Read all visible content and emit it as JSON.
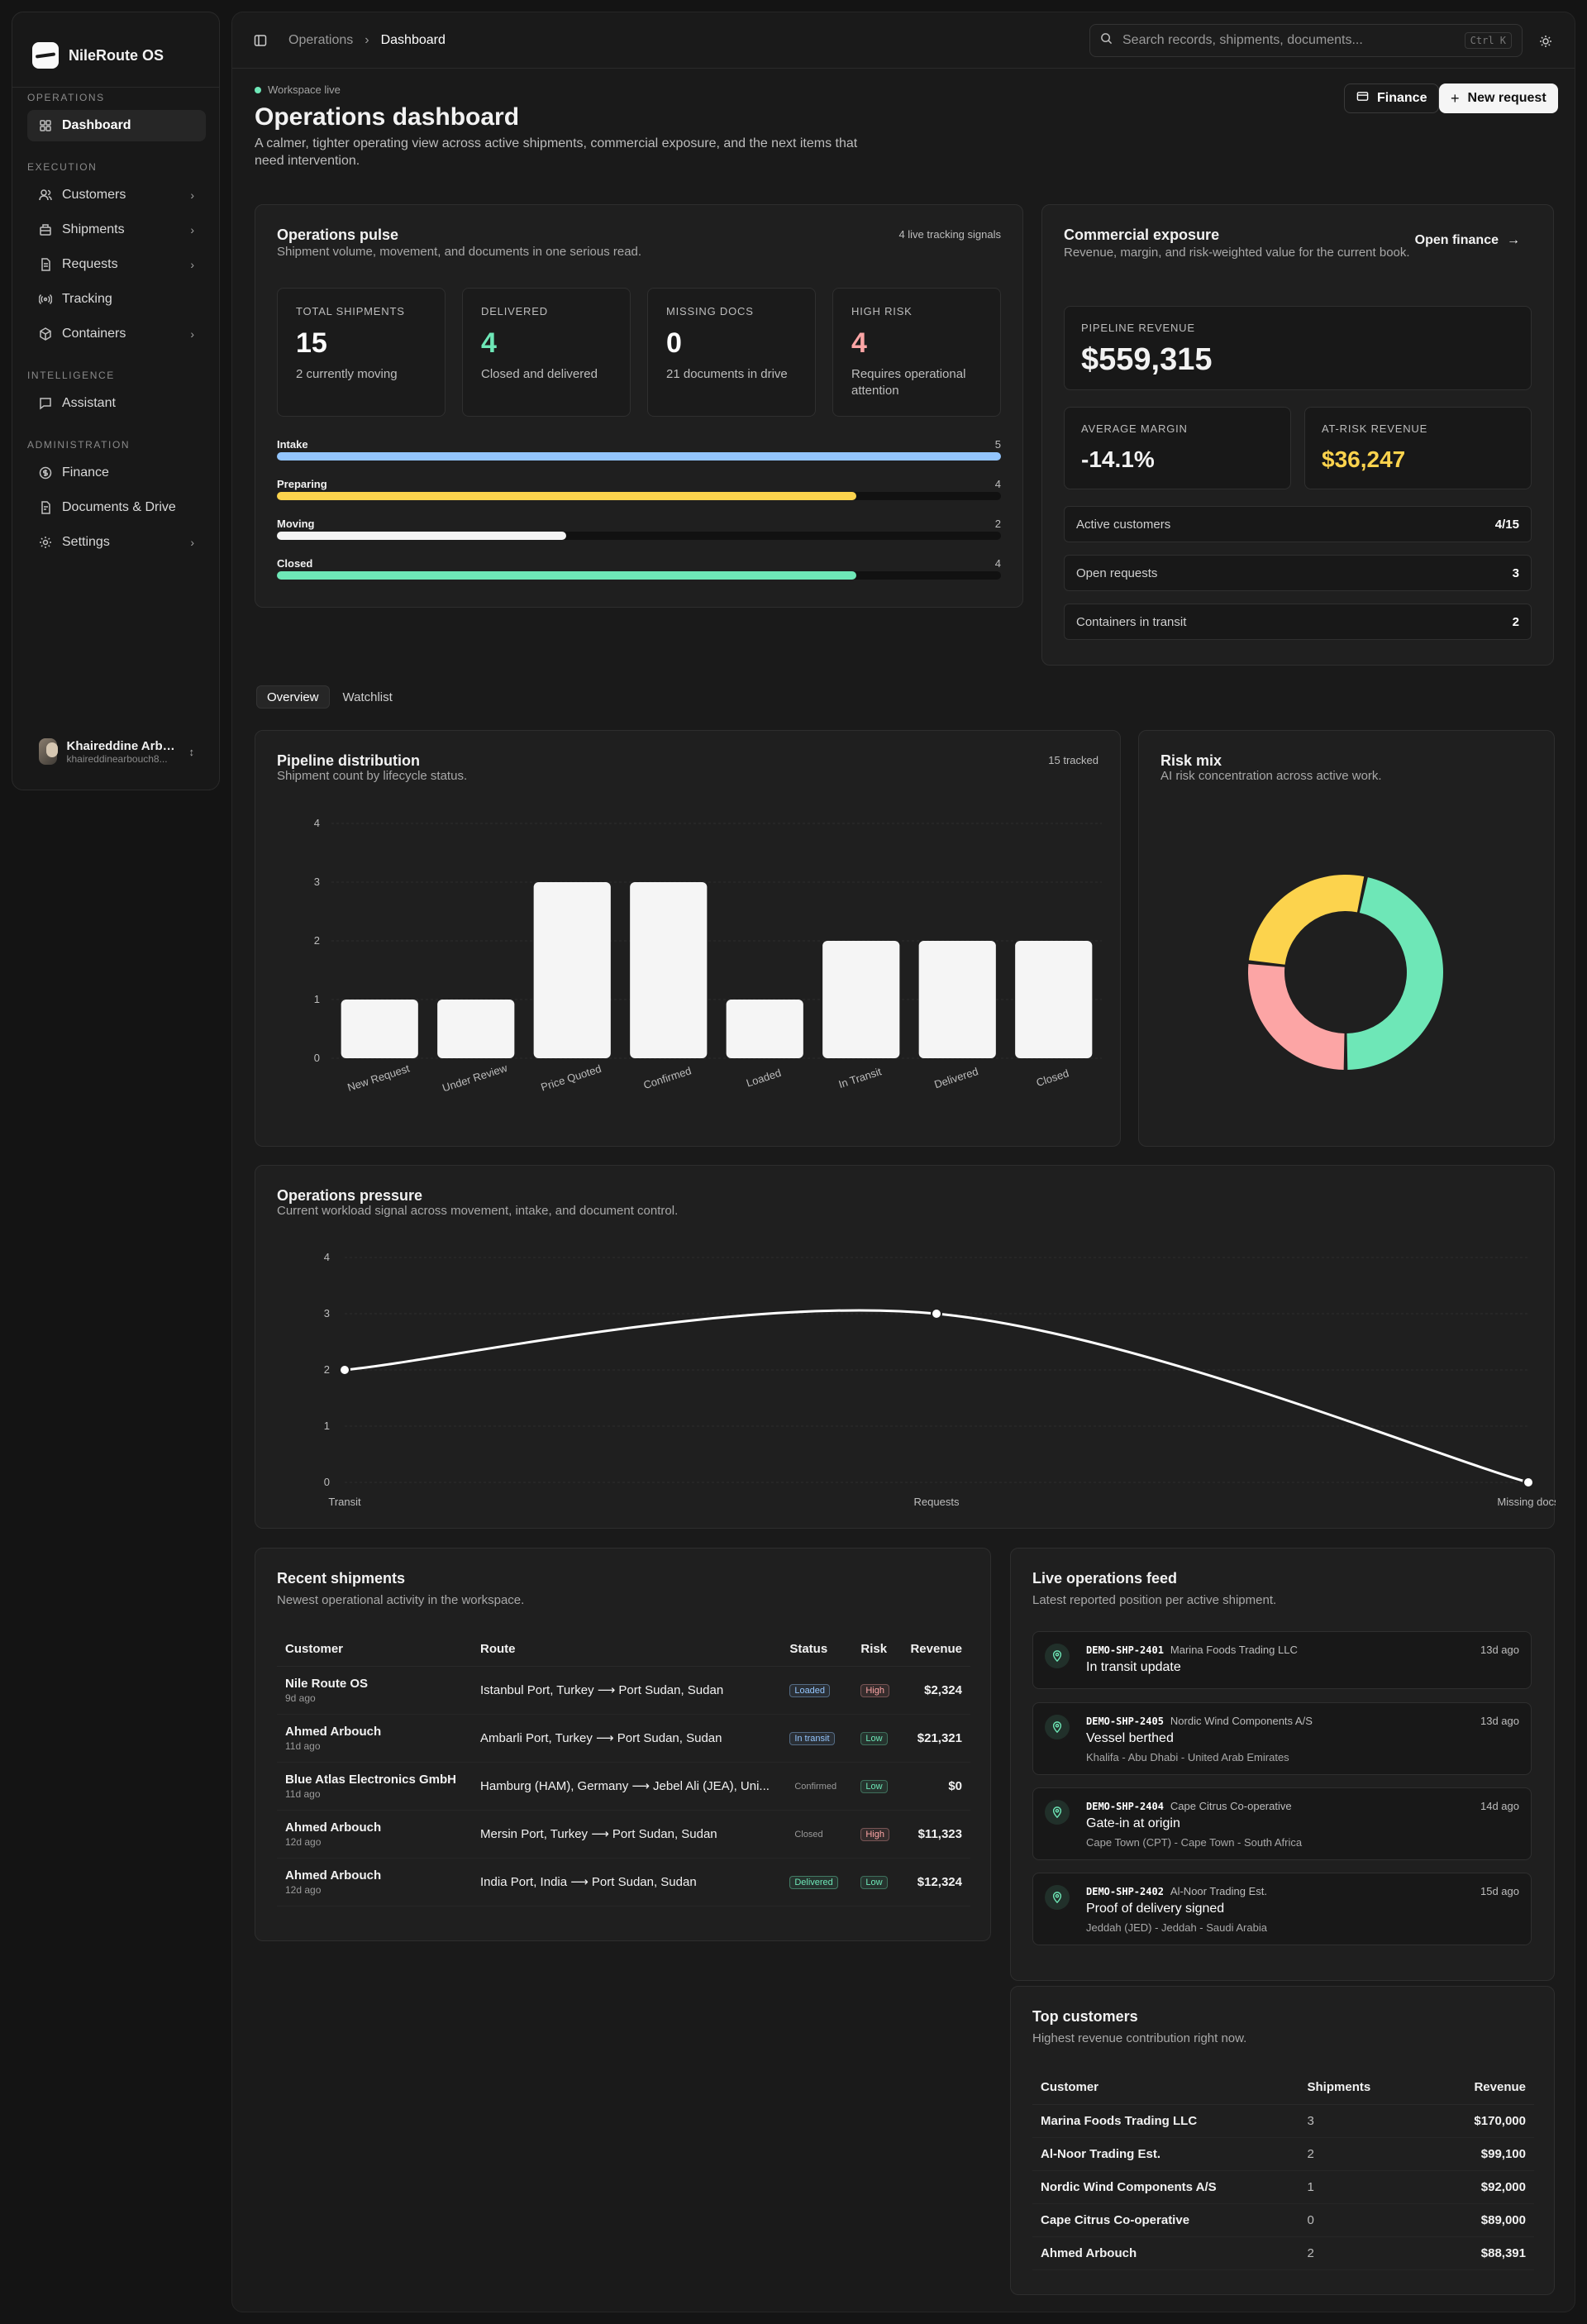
{
  "app": {
    "name": "NileRoute OS"
  },
  "sidebar": {
    "groups": [
      {
        "label": "Operations"
      },
      {
        "label": "Execution"
      },
      {
        "label": "Intelligence"
      },
      {
        "label": "Administration"
      }
    ],
    "items": [
      {
        "label": "Dashboard",
        "icon": "grid-icon"
      },
      {
        "label": "Customers",
        "icon": "users-icon"
      },
      {
        "label": "Shipments",
        "icon": "box-icon"
      },
      {
        "label": "Requests",
        "icon": "file-icon"
      },
      {
        "label": "Tracking",
        "icon": "radio-icon"
      },
      {
        "label": "Containers",
        "icon": "package-icon"
      },
      {
        "label": "Assistant",
        "icon": "message-icon"
      },
      {
        "label": "Finance",
        "icon": "dollar-icon"
      },
      {
        "label": "Documents & Drive",
        "icon": "document-icon"
      },
      {
        "label": "Settings",
        "icon": "gear-icon"
      }
    ],
    "user": {
      "name": "Khaireddine Arbouch",
      "email": "khaireddinearbouch8..."
    }
  },
  "topbar": {
    "breadcrumb": [
      "Operations",
      "Dashboard"
    ],
    "search_placeholder": "Search records, shipments, documents...",
    "shortcut": "Ctrl K"
  },
  "header": {
    "status": "Workspace live",
    "title": "Operations dashboard",
    "subtitle": "A calmer, tighter operating view across active shipments, commercial exposure, and the next items that need intervention.",
    "finance_button": "Finance",
    "new_request_button": "New request"
  },
  "pulse": {
    "title": "Operations pulse",
    "subtitle": "Shipment volume, movement, and documents in one serious read.",
    "tag": "4 live tracking signals",
    "kpis": [
      {
        "label": "Total shipments",
        "value": "15",
        "note": "2 currently moving",
        "color": "#ffffff"
      },
      {
        "label": "Delivered",
        "value": "4",
        "note": "Closed and delivered",
        "color": "#6ee7b7"
      },
      {
        "label": "Missing docs",
        "value": "0",
        "note": "21 documents in drive",
        "color": "#ffffff"
      },
      {
        "label": "High risk",
        "value": "4",
        "note": "Requires operational attention",
        "color": "#fca5a5"
      }
    ],
    "bars": [
      {
        "label": "Intake",
        "value": 5,
        "max": 5,
        "color": "#93c5fd"
      },
      {
        "label": "Preparing",
        "value": 4,
        "max": 5,
        "color": "#fcd34d"
      },
      {
        "label": "Moving",
        "value": 2,
        "max": 5,
        "color": "#f5f5f5"
      },
      {
        "label": "Closed",
        "value": 4,
        "max": 5,
        "color": "#6ee7b7"
      }
    ]
  },
  "commercial": {
    "title": "Commercial exposure",
    "subtitle": "Revenue, margin, and risk-weighted value for the current book.",
    "link": "Open finance",
    "pipeline_label": "Pipeline revenue",
    "pipeline_value": "$559,315",
    "margin_label": "Average margin",
    "margin_value": "-14.1%",
    "atrisk_label": "At-risk revenue",
    "atrisk_value": "$36,247",
    "rows": [
      {
        "label": "Active customers",
        "value": "4/15"
      },
      {
        "label": "Open requests",
        "value": "3"
      },
      {
        "label": "Containers in transit",
        "value": "2"
      }
    ]
  },
  "tabs": [
    {
      "label": "Overview"
    },
    {
      "label": "Watchlist"
    }
  ],
  "pipeline": {
    "title": "Pipeline distribution",
    "subtitle": "Shipment count by lifecycle status.",
    "tag": "15 tracked"
  },
  "risk": {
    "title": "Risk mix",
    "subtitle": "AI risk concentration across active work."
  },
  "pressure": {
    "title": "Operations pressure",
    "subtitle": "Current workload signal across movement, intake, and document control."
  },
  "chart_data": [
    {
      "type": "bar",
      "categories": [
        "New Request",
        "Under Review",
        "Price Quoted",
        "Confirmed",
        "Loaded",
        "In Transit",
        "Delivered",
        "Closed"
      ],
      "values": [
        1,
        1,
        3,
        3,
        1,
        2,
        2,
        2
      ],
      "ylim": [
        0,
        4
      ],
      "yticks": [
        0,
        1,
        2,
        3,
        4
      ],
      "grid": true,
      "color": "#f5f5f5"
    },
    {
      "type": "pie",
      "donut": true,
      "values": [
        4,
        4,
        7
      ],
      "colors": [
        "#fca5a5",
        "#fcd34d",
        "#6ee7b7"
      ]
    },
    {
      "type": "line",
      "categories": [
        "Transit",
        "Requests",
        "Missing docs"
      ],
      "values": [
        2,
        3,
        0
      ],
      "ylim": [
        0,
        4
      ],
      "yticks": [
        0,
        1,
        2,
        3,
        4
      ],
      "grid": true,
      "color": "#ffffff"
    }
  ],
  "recent": {
    "title": "Recent shipments",
    "subtitle": "Newest operational activity in the workspace.",
    "columns": [
      "Customer",
      "Route",
      "Status",
      "Risk",
      "Revenue"
    ],
    "rows": [
      {
        "customer": "Nile Route OS",
        "ago": "9d ago",
        "route": "Istanbul Port, Turkey ⟶ Port Sudan, Sudan",
        "status": "Loaded",
        "status_color": "#93c5fd",
        "risk": "High",
        "risk_color": "#fca5a5",
        "revenue": "$2,324"
      },
      {
        "customer": "Ahmed Arbouch",
        "ago": "11d ago",
        "route": "Ambarli Port, Turkey ⟶ Port Sudan, Sudan",
        "status": "In transit",
        "status_color": "#93c5fd",
        "risk": "Low",
        "risk_color": "#6ee7b7",
        "revenue": "$21,321"
      },
      {
        "customer": "Blue Atlas Electronics GmbH",
        "ago": "11d ago",
        "route": "Hamburg (HAM), Germany ⟶ Jebel Ali (JEA), Uni...",
        "status": "Confirmed",
        "status_color": "#9a9a9a",
        "risk": "Low",
        "risk_color": "#6ee7b7",
        "revenue": "$0"
      },
      {
        "customer": "Ahmed Arbouch",
        "ago": "12d ago",
        "route": "Mersin Port, Turkey ⟶ Port Sudan, Sudan",
        "status": "Closed",
        "status_color": "#9a9a9a",
        "risk": "High",
        "risk_color": "#fca5a5",
        "revenue": "$11,323"
      },
      {
        "customer": "Ahmed Arbouch",
        "ago": "12d ago",
        "route": "India Port, India ⟶ Port Sudan, Sudan",
        "status": "Delivered",
        "status_color": "#6ee7b7",
        "risk": "Low",
        "risk_color": "#6ee7b7",
        "revenue": "$12,324"
      }
    ]
  },
  "feed": {
    "title": "Live operations feed",
    "subtitle": "Latest reported position per active shipment.",
    "items": [
      {
        "id": "DEMO-SHP-2401",
        "company": "Marina Foods Trading LLC",
        "ago": "13d ago",
        "event": "In transit update",
        "location": ""
      },
      {
        "id": "DEMO-SHP-2405",
        "company": "Nordic Wind Components A/S",
        "ago": "13d ago",
        "event": "Vessel berthed",
        "location": "Khalifa - Abu Dhabi - United Arab Emirates"
      },
      {
        "id": "DEMO-SHP-2404",
        "company": "Cape Citrus Co-operative",
        "ago": "14d ago",
        "event": "Gate-in at origin",
        "location": "Cape Town (CPT) - Cape Town - South Africa"
      },
      {
        "id": "DEMO-SHP-2402",
        "company": "Al-Noor Trading Est.",
        "ago": "15d ago",
        "event": "Proof of delivery signed",
        "location": "Jeddah (JED) - Jeddah - Saudi Arabia"
      }
    ]
  },
  "top_customers": {
    "title": "Top customers",
    "subtitle": "Highest revenue contribution right now.",
    "columns": [
      "Customer",
      "Shipments",
      "Revenue"
    ],
    "rows": [
      {
        "customer": "Marina Foods Trading LLC",
        "shipments": "3",
        "revenue": "$170,000"
      },
      {
        "customer": "Al-Noor Trading Est.",
        "shipments": "2",
        "revenue": "$99,100"
      },
      {
        "customer": "Nordic Wind Components A/S",
        "shipments": "1",
        "revenue": "$92,000"
      },
      {
        "customer": "Cape Citrus Co-operative",
        "shipments": "0",
        "revenue": "$89,000"
      },
      {
        "customer": "Ahmed Arbouch",
        "shipments": "2",
        "revenue": "$88,391"
      }
    ]
  }
}
